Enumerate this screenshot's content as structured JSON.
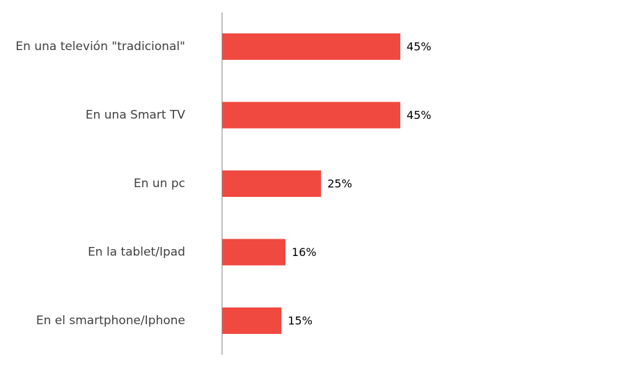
{
  "chart_data": {
    "type": "bar",
    "orientation": "horizontal",
    "categories": [
      "En una televión \"tradicional\"",
      "En una Smart TV",
      "En un pc",
      "En la tablet/Ipad",
      "En el smartphone/Iphone"
    ],
    "values": [
      45,
      45,
      25,
      16,
      15
    ],
    "value_labels": [
      "45%",
      "45%",
      "25%",
      "16%",
      "15%"
    ],
    "xlim": [
      0,
      100
    ],
    "grid": false,
    "legend": "none",
    "colors": {
      "bar": "#f04940",
      "axis": "#808080"
    }
  }
}
